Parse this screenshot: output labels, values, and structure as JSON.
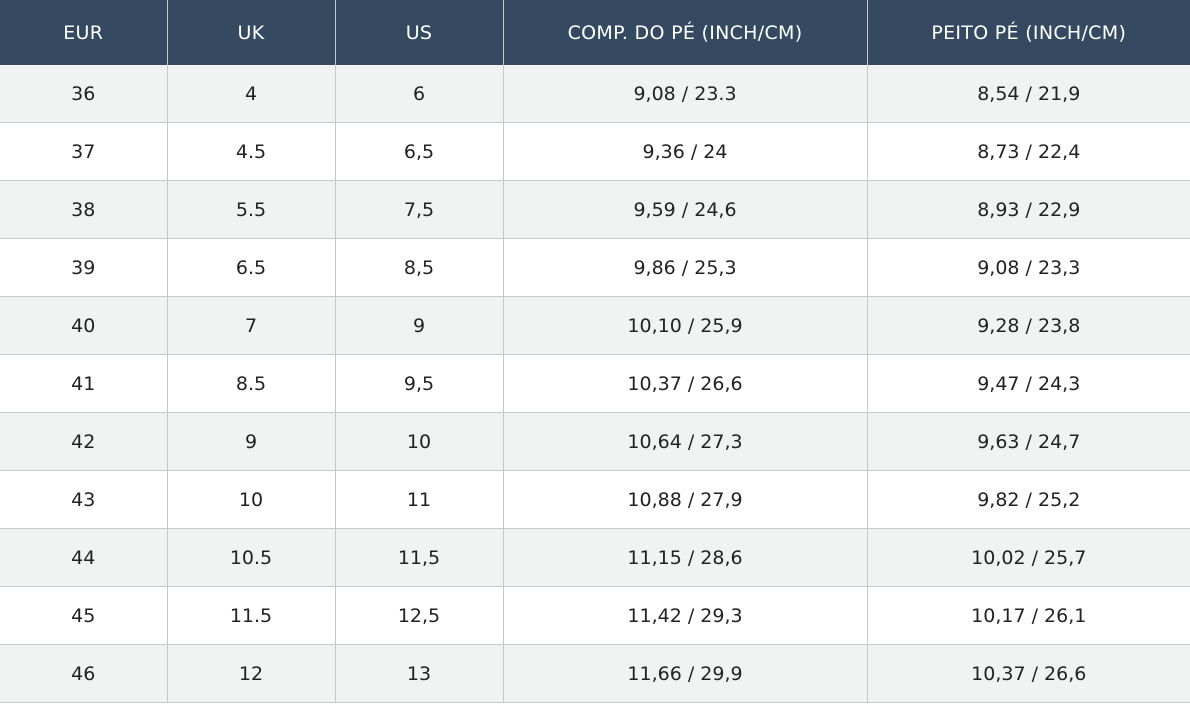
{
  "table": {
    "headers": [
      "EUR",
      "UK",
      "US",
      "COMP. DO PÉ (INCH/CM)",
      "PEITO PÉ (INCH/CM)"
    ],
    "rows": [
      [
        "36",
        "4",
        "6",
        "9,08 / 23.3",
        "8,54 / 21,9"
      ],
      [
        "37",
        "4.5",
        "6,5",
        "9,36 / 24",
        "8,73 / 22,4"
      ],
      [
        "38",
        "5.5",
        "7,5",
        "9,59 / 24,6",
        "8,93 / 22,9"
      ],
      [
        "39",
        "6.5",
        "8,5",
        "9,86 / 25,3",
        "9,08 / 23,3"
      ],
      [
        "40",
        "7",
        "9",
        "10,10 / 25,9",
        "9,28 / 23,8"
      ],
      [
        "41",
        "8.5",
        "9,5",
        "10,37 / 26,6",
        "9,47 / 24,3"
      ],
      [
        "42",
        "9",
        "10",
        "10,64 / 27,3",
        "9,63 / 24,7"
      ],
      [
        "43",
        "10",
        "11",
        "10,88 / 27,9",
        "9,82 / 25,2"
      ],
      [
        "44",
        "10.5",
        "11,5",
        "11,15 / 28,6",
        "10,02 / 25,7"
      ],
      [
        "45",
        "11.5",
        "12,5",
        "11,42 / 29,3",
        "10,17 / 26,1"
      ],
      [
        "46",
        "12",
        "13",
        "11,66 / 29,9",
        "10,37 / 26,6"
      ]
    ]
  }
}
